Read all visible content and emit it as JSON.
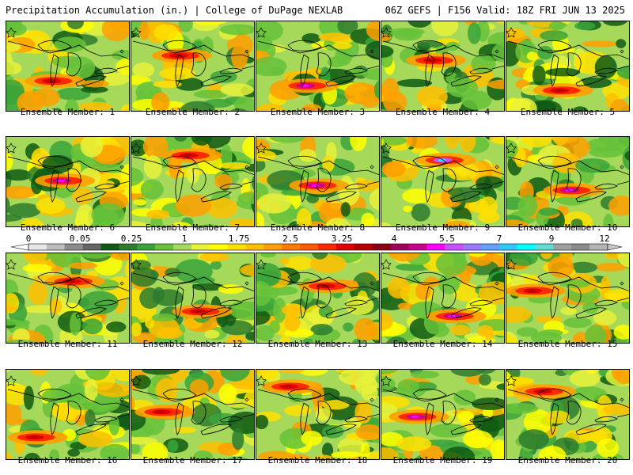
{
  "header": {
    "left": "Precipitation Accumulation (in.) | College of DuPage NEXLAB",
    "right": "06Z GEFS | F156 Valid: 18Z FRI JUN 13 2025"
  },
  "colorbar": {
    "tick_labels": [
      "0",
      "0.05",
      "0.25",
      "1",
      "1.75",
      "2.5",
      "3.25",
      "4",
      "5.5",
      "7",
      "9",
      "12"
    ],
    "colors": [
      "#e6e6e6",
      "#bdbdbd",
      "#8c8c8c",
      "#666666",
      "#0f5a14",
      "#2e7d2e",
      "#3aa43a",
      "#66c23a",
      "#a6d85a",
      "#e8f23a",
      "#ffff00",
      "#ffe000",
      "#ffc000",
      "#ffa000",
      "#ff7a00",
      "#ff5a00",
      "#ff2a00",
      "#e00000",
      "#b40000",
      "#8a0014",
      "#a0005a",
      "#c8008c",
      "#ff00ff",
      "#c850ff",
      "#9a78ff",
      "#64a0ff",
      "#32c8ff",
      "#00ffff",
      "#64dcd2",
      "#a0a0a0",
      "#8c8c8c",
      "#b4b4b4"
    ]
  },
  "panels": [
    {
      "label": "Ensemble Member: 1",
      "hot": "red"
    },
    {
      "label": "Ensemble Member: 2",
      "hot": "red"
    },
    {
      "label": "Ensemble Member: 3",
      "hot": "magenta"
    },
    {
      "label": "Ensemble Member: 4",
      "hot": "red"
    },
    {
      "label": "Ensemble Member: 5",
      "hot": "red"
    },
    {
      "label": "Ensemble Member: 6",
      "hot": "magenta"
    },
    {
      "label": "Ensemble Member: 7",
      "hot": "red"
    },
    {
      "label": "Ensemble Member: 8",
      "hot": "magenta"
    },
    {
      "label": "Ensemble Member: 9",
      "hot": "cyan"
    },
    {
      "label": "Ensemble Member: 10",
      "hot": "magenta"
    },
    {
      "label": "Ensemble Member: 11",
      "hot": "red"
    },
    {
      "label": "Ensemble Member: 12",
      "hot": "red"
    },
    {
      "label": "Ensemble Member: 13",
      "hot": "red"
    },
    {
      "label": "Ensemble Member: 14",
      "hot": "magenta"
    },
    {
      "label": "Ensemble Member: 15",
      "hot": "red"
    },
    {
      "label": "Ensemble Member: 16",
      "hot": "red"
    },
    {
      "label": "Ensemble Member: 17",
      "hot": "red"
    },
    {
      "label": "Ensemble Member: 18",
      "hot": "red"
    },
    {
      "label": "Ensemble Member: 19",
      "hot": "magenta"
    },
    {
      "label": "Ensemble Member: 20",
      "hot": "red"
    }
  ]
}
